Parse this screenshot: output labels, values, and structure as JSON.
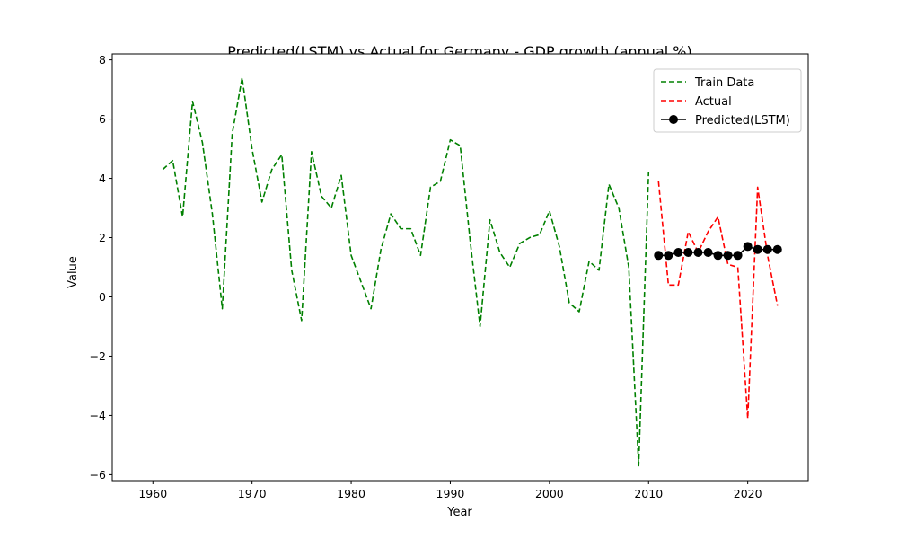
{
  "chart_data": {
    "type": "line",
    "title": "Predicted(LSTM) vs Actual for Germany - GDP growth (annual %)",
    "xlabel": "Year",
    "ylabel": "Value",
    "xlim": [
      1955.9,
      2026.1
    ],
    "ylim": [
      -6.2,
      8.2
    ],
    "x_ticks": [
      1960,
      1970,
      1980,
      1990,
      2000,
      2010,
      2020
    ],
    "x_tick_labels": [
      "1960",
      "1970",
      "1980",
      "1990",
      "2000",
      "2010",
      "2020"
    ],
    "y_ticks": [
      -6,
      -4,
      -2,
      0,
      2,
      4,
      6,
      8
    ],
    "y_tick_labels": [
      "−6",
      "−4",
      "−2",
      "0",
      "2",
      "4",
      "6",
      "8"
    ],
    "legend_position": "top-right",
    "series": [
      {
        "name": "Train Data",
        "style": "dashed",
        "color": "#008000",
        "x": [
          1961,
          1962,
          1963,
          1964,
          1965,
          1966,
          1967,
          1968,
          1969,
          1970,
          1971,
          1972,
          1973,
          1974,
          1975,
          1976,
          1977,
          1978,
          1979,
          1980,
          1981,
          1982,
          1983,
          1984,
          1985,
          1986,
          1987,
          1988,
          1989,
          1990,
          1991,
          1992,
          1993,
          1994,
          1995,
          1996,
          1997,
          1998,
          1999,
          2000,
          2001,
          2002,
          2003,
          2004,
          2005,
          2006,
          2007,
          2008,
          2009,
          2010
        ],
        "y": [
          4.3,
          4.6,
          2.7,
          6.6,
          5.2,
          2.8,
          -0.4,
          5.5,
          7.4,
          5.0,
          3.2,
          4.3,
          4.8,
          0.9,
          -0.8,
          4.9,
          3.4,
          3.0,
          4.1,
          1.4,
          0.5,
          -0.4,
          1.6,
          2.8,
          2.3,
          2.3,
          1.4,
          3.7,
          3.9,
          5.3,
          5.1,
          1.9,
          -1.0,
          2.6,
          1.5,
          1.0,
          1.8,
          2.0,
          2.1,
          2.9,
          1.7,
          -0.2,
          -0.5,
          1.2,
          0.9,
          3.8,
          3.0,
          1.0,
          -5.7,
          4.2
        ]
      },
      {
        "name": "Actual",
        "style": "dashed",
        "color": "#ff0000",
        "x": [
          2011,
          2012,
          2013,
          2014,
          2015,
          2016,
          2017,
          2018,
          2019,
          2020,
          2021,
          2022,
          2023
        ],
        "y": [
          3.9,
          0.4,
          0.4,
          2.2,
          1.5,
          2.2,
          2.7,
          1.1,
          1.0,
          -4.1,
          3.7,
          1.4,
          -0.3
        ]
      },
      {
        "name": "Predicted(LSTM)",
        "style": "solid-markers",
        "color": "#000000",
        "x": [
          2011,
          2012,
          2013,
          2014,
          2015,
          2016,
          2017,
          2018,
          2019,
          2020,
          2021,
          2022,
          2023
        ],
        "y": [
          1.4,
          1.4,
          1.5,
          1.5,
          1.5,
          1.5,
          1.4,
          1.4,
          1.4,
          1.7,
          1.6,
          1.6,
          1.6
        ]
      }
    ]
  }
}
